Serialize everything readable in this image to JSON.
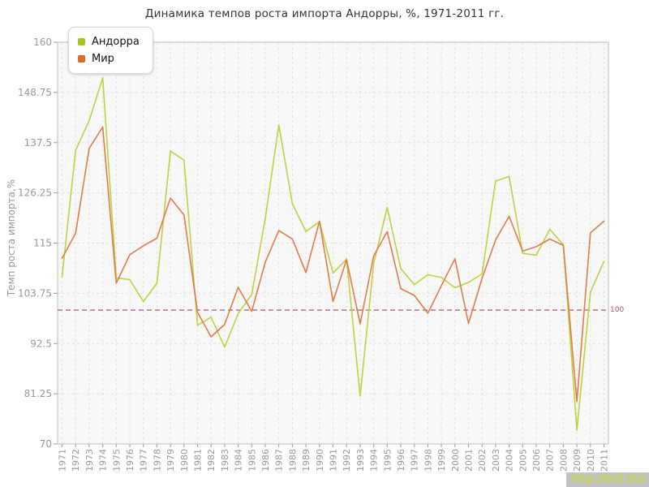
{
  "title": "Динамика темпов роста импорта Андорры, %, 1971-2011 гг.",
  "baseline_label": "100",
  "watermark": "http://be5.biz/",
  "legend": {
    "items": [
      {
        "label": "Андорра",
        "color": "#a4c71d"
      },
      {
        "label": "Мир",
        "color": "#dc6b29"
      }
    ]
  },
  "chart_data": {
    "type": "line",
    "title": "Динамика темпов роста импорта Андорры, %, 1971-2011 гг.",
    "xlabel": "",
    "ylabel": "Темп роста импорта,%",
    "ylim": [
      70,
      160
    ],
    "y_ticks": [
      160,
      148.75,
      137.5,
      126.25,
      115,
      103.75,
      92.5,
      81.25,
      70
    ],
    "grid": true,
    "legend_position": "top-left",
    "baseline": 100,
    "baseline_color": "#a85868",
    "x": [
      1971,
      1972,
      1973,
      1974,
      1975,
      1976,
      1977,
      1978,
      1979,
      1980,
      1981,
      1982,
      1983,
      1984,
      1985,
      1986,
      1987,
      1988,
      1989,
      1990,
      1991,
      1992,
      1993,
      1994,
      1995,
      1996,
      1997,
      1998,
      1999,
      2000,
      2001,
      2002,
      2003,
      2004,
      2005,
      2006,
      2007,
      2008,
      2009,
      2010,
      2011
    ],
    "series": [
      {
        "name": "Андорра",
        "color": "#bcd23f",
        "values": [
          107.4,
          135.8,
          142.4,
          152.0,
          107.2,
          106.8,
          101.9,
          106.0,
          135.6,
          133.6,
          96.6,
          98.4,
          91.7,
          99.2,
          103.5,
          120.5,
          141.5,
          123.8,
          117.6,
          119.8,
          108.3,
          111.4,
          80.7,
          110.4,
          123.0,
          109.3,
          105.7,
          107.9,
          107.3,
          105.0,
          106.2,
          108.1,
          128.9,
          129.9,
          112.7,
          112.3,
          118.1,
          114.6,
          73.1,
          104.0,
          110.9
        ]
      },
      {
        "name": "Мир",
        "color": "#e07c4a",
        "values": [
          111.6,
          117.2,
          136.2,
          141.0,
          106.0,
          112.4,
          114.4,
          116.1,
          125.1,
          121.3,
          99.5,
          94.0,
          96.8,
          105.1,
          99.7,
          110.7,
          117.8,
          115.9,
          108.4,
          119.9,
          101.9,
          111.3,
          96.9,
          112.1,
          117.6,
          104.8,
          103.3,
          99.3,
          105.5,
          111.5,
          97.0,
          107.1,
          115.7,
          121.0,
          113.2,
          114.2,
          115.9,
          114.5,
          79.5,
          117.3,
          119.9
        ]
      }
    ]
  }
}
